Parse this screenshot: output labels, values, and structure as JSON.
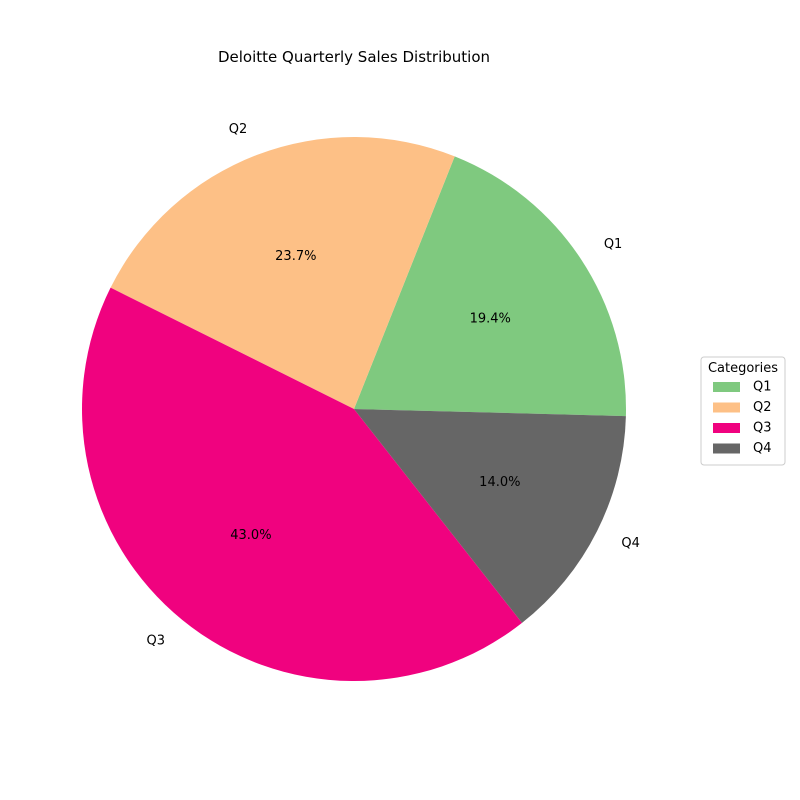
{
  "chart_data": {
    "type": "pie",
    "title": "Deloitte Quarterly Sales Distribution",
    "categories": [
      "Q1",
      "Q2",
      "Q3",
      "Q4"
    ],
    "values": [
      19.4,
      23.7,
      43.0,
      14.0
    ],
    "percent_labels": [
      "19.4%",
      "23.7%",
      "43.0%",
      "14.0%"
    ],
    "colors": [
      "#7fc97f",
      "#fdc086",
      "#f0027f",
      "#666666"
    ],
    "start_angle_deg": -1.5,
    "direction": "counterclockwise",
    "legend": {
      "title": "Categories",
      "placement": "right"
    }
  }
}
